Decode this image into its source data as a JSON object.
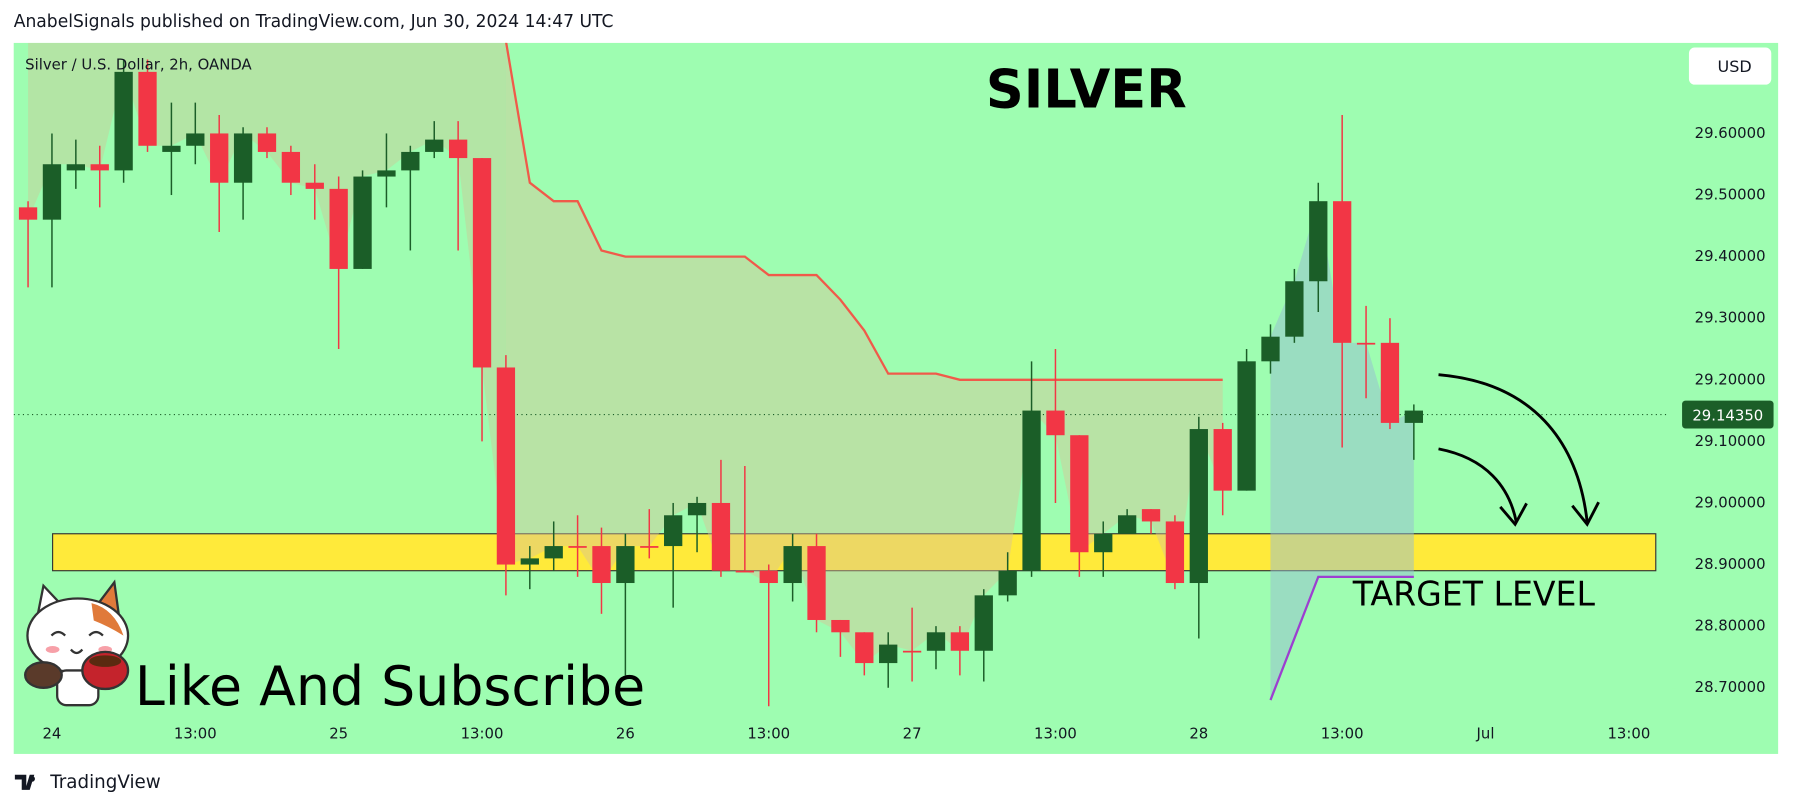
{
  "header": "AnabelSignals published on TradingView.com, Jun 30, 2024 14:47 UTC",
  "branding": "TradingView",
  "chart_data": {
    "type": "candlestick",
    "title": "SILVER",
    "subtitle": "Silver / U.S. Dollar, 2h, OANDA",
    "currency": "USD",
    "up_color": "#1b5e28",
    "down_color": "#f23645",
    "open": [
      29.48,
      29.46,
      29.54,
      29.55,
      29.54,
      29.7,
      29.57,
      29.58,
      29.6,
      29.52,
      29.6,
      29.57,
      29.52,
      29.51,
      29.38,
      29.53,
      29.54,
      29.57,
      29.59,
      29.56,
      29.22,
      28.9,
      28.91,
      28.93,
      28.93,
      28.87,
      28.93,
      28.93,
      28.98,
      29.0,
      28.89,
      28.89,
      28.87,
      28.93,
      28.81,
      28.79,
      28.74,
      28.76,
      28.76,
      28.79,
      28.76,
      28.85,
      28.89,
      29.15,
      29.11,
      28.92,
      28.95,
      28.99,
      28.97,
      28.87,
      29.12,
      29.02,
      29.23,
      29.27,
      29.36,
      29.49,
      29.26,
      29.26,
      29.13
    ],
    "high": [
      29.49,
      29.6,
      29.59,
      29.58,
      29.72,
      29.72,
      29.65,
      29.65,
      29.63,
      29.61,
      29.61,
      29.58,
      29.55,
      29.53,
      29.54,
      29.6,
      29.58,
      29.62,
      29.62,
      29.56,
      29.24,
      28.93,
      28.97,
      28.98,
      28.96,
      28.95,
      28.99,
      29.0,
      29.01,
      29.07,
      29.06,
      28.9,
      28.95,
      28.95,
      28.81,
      28.79,
      28.79,
      28.83,
      28.8,
      28.8,
      28.86,
      28.92,
      29.23,
      29.25,
      29.11,
      28.97,
      28.99,
      28.99,
      28.98,
      29.14,
      29.13,
      29.25,
      29.29,
      29.38,
      29.52,
      29.63,
      29.32,
      29.3,
      29.16
    ],
    "low": [
      29.35,
      29.35,
      29.51,
      29.48,
      29.52,
      29.57,
      29.5,
      29.55,
      29.44,
      29.46,
      29.56,
      29.5,
      29.46,
      29.25,
      29.38,
      29.48,
      29.41,
      29.56,
      29.41,
      29.1,
      28.85,
      28.86,
      28.89,
      28.88,
      28.82,
      28.72,
      28.91,
      28.83,
      28.92,
      28.88,
      28.89,
      28.67,
      28.84,
      28.79,
      28.75,
      28.72,
      28.7,
      28.71,
      28.73,
      28.72,
      28.71,
      28.84,
      28.88,
      29.0,
      28.88,
      28.88,
      28.96,
      28.95,
      28.86,
      28.78,
      28.98,
      29.02,
      29.21,
      29.26,
      29.31,
      29.09,
      29.17,
      29.12,
      29.07
    ],
    "close": [
      29.46,
      29.55,
      29.55,
      29.54,
      29.7,
      29.58,
      29.58,
      29.6,
      29.52,
      29.6,
      29.57,
      29.52,
      29.51,
      29.38,
      29.53,
      29.54,
      29.57,
      29.59,
      29.56,
      29.22,
      28.9,
      28.91,
      28.93,
      28.93,
      28.87,
      28.93,
      28.93,
      28.98,
      29.0,
      28.89,
      28.89,
      28.87,
      28.93,
      28.81,
      28.79,
      28.74,
      28.77,
      28.76,
      28.79,
      28.76,
      28.85,
      28.89,
      29.15,
      29.11,
      28.92,
      28.95,
      28.98,
      28.97,
      28.87,
      29.12,
      29.02,
      29.23,
      29.27,
      29.36,
      29.49,
      29.26,
      29.26,
      29.13,
      29.15
    ],
    "overlays": [
      {
        "color": "#f05a4a",
        "values": [
          null,
          null,
          null,
          null,
          null,
          null,
          null,
          null,
          null,
          null,
          null,
          null,
          null,
          null,
          null,
          null,
          null,
          null,
          null,
          null,
          29.75,
          29.52,
          29.49,
          29.49,
          29.41,
          29.4,
          29.4,
          29.4,
          29.4,
          29.4,
          29.4,
          29.37,
          29.37,
          29.37,
          29.33,
          29.28,
          29.21,
          29.21,
          29.21,
          29.2,
          29.2,
          29.2,
          29.2,
          29.2,
          29.2,
          29.2,
          29.2,
          29.2,
          29.2,
          29.2,
          29.2,
          null,
          null,
          null,
          null,
          null,
          null,
          null,
          null
        ]
      },
      {
        "color": "#9c3fd0",
        "values": [
          null,
          null,
          null,
          null,
          null,
          null,
          null,
          null,
          null,
          null,
          null,
          null,
          null,
          null,
          null,
          null,
          null,
          null,
          null,
          null,
          null,
          null,
          null,
          null,
          null,
          null,
          null,
          null,
          null,
          null,
          null,
          null,
          null,
          null,
          null,
          null,
          null,
          null,
          null,
          null,
          null,
          null,
          null,
          null,
          null,
          null,
          null,
          null,
          null,
          null,
          null,
          null,
          28.68,
          28.78,
          28.88,
          28.88,
          28.88,
          28.88,
          28.88
        ]
      }
    ],
    "zone": {
      "low": 28.89,
      "high": 28.95,
      "color": "#ffea3a"
    },
    "last_price": {
      "value": 29.1435,
      "label": "29.14350"
    },
    "annotations": [
      "TARGET LEVEL",
      "Like And Subscribe"
    ],
    "xlim": [
      -0.6,
      68.7
    ],
    "ylim": [
      28.649,
      29.747
    ],
    "xticks": [
      {
        "value": 1,
        "label": "24"
      },
      {
        "value": 7,
        "label": "13:00"
      },
      {
        "value": 13,
        "label": "25"
      },
      {
        "value": 19,
        "label": "13:00"
      },
      {
        "value": 25,
        "label": "26"
      },
      {
        "value": 31,
        "label": "13:00"
      },
      {
        "value": 37,
        "label": "27"
      },
      {
        "value": 43,
        "label": "13:00"
      },
      {
        "value": 49,
        "label": "28"
      },
      {
        "value": 55,
        "label": "13:00"
      },
      {
        "value": 61,
        "label": "Jul"
      },
      {
        "value": 67,
        "label": "13:00"
      }
    ],
    "yticks": [
      {
        "value": 29.6,
        "label": "29.60000"
      },
      {
        "value": 29.5,
        "label": "29.50000"
      },
      {
        "value": 29.4,
        "label": "29.40000"
      },
      {
        "value": 29.3,
        "label": "29.30000"
      },
      {
        "value": 29.2,
        "label": "29.20000"
      },
      {
        "value": 29.1,
        "label": "29.10000"
      },
      {
        "value": 29.0,
        "label": "29.00000"
      },
      {
        "value": 28.9,
        "label": "28.90000"
      },
      {
        "value": 28.8,
        "label": "28.80000"
      },
      {
        "value": 28.7,
        "label": "28.70000"
      }
    ]
  }
}
